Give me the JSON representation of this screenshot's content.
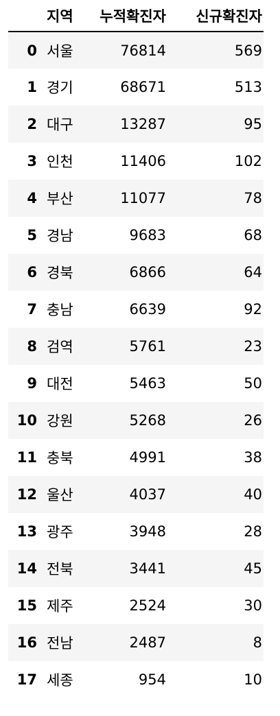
{
  "table": {
    "columns": [
      "",
      "지역",
      "누적확진자",
      "신규확진자"
    ],
    "rows": [
      {
        "index": "0",
        "region": "서울",
        "cumulative": "76814",
        "new": "569"
      },
      {
        "index": "1",
        "region": "경기",
        "cumulative": "68671",
        "new": "513"
      },
      {
        "index": "2",
        "region": "대구",
        "cumulative": "13287",
        "new": "95"
      },
      {
        "index": "3",
        "region": "인천",
        "cumulative": "11406",
        "new": "102"
      },
      {
        "index": "4",
        "region": "부산",
        "cumulative": "11077",
        "new": "78"
      },
      {
        "index": "5",
        "region": "경남",
        "cumulative": "9683",
        "new": "68"
      },
      {
        "index": "6",
        "region": "경북",
        "cumulative": "6866",
        "new": "64"
      },
      {
        "index": "7",
        "region": "충남",
        "cumulative": "6639",
        "new": "92"
      },
      {
        "index": "8",
        "region": "검역",
        "cumulative": "5761",
        "new": "23"
      },
      {
        "index": "9",
        "region": "대전",
        "cumulative": "5463",
        "new": "50"
      },
      {
        "index": "10",
        "region": "강원",
        "cumulative": "5268",
        "new": "26"
      },
      {
        "index": "11",
        "region": "충북",
        "cumulative": "4991",
        "new": "38"
      },
      {
        "index": "12",
        "region": "울산",
        "cumulative": "4037",
        "new": "40"
      },
      {
        "index": "13",
        "region": "광주",
        "cumulative": "3948",
        "new": "28"
      },
      {
        "index": "14",
        "region": "전북",
        "cumulative": "3441",
        "new": "45"
      },
      {
        "index": "15",
        "region": "제주",
        "cumulative": "2524",
        "new": "30"
      },
      {
        "index": "16",
        "region": "전남",
        "cumulative": "2487",
        "new": "8"
      },
      {
        "index": "17",
        "region": "세종",
        "cumulative": "954",
        "new": "10"
      }
    ]
  }
}
